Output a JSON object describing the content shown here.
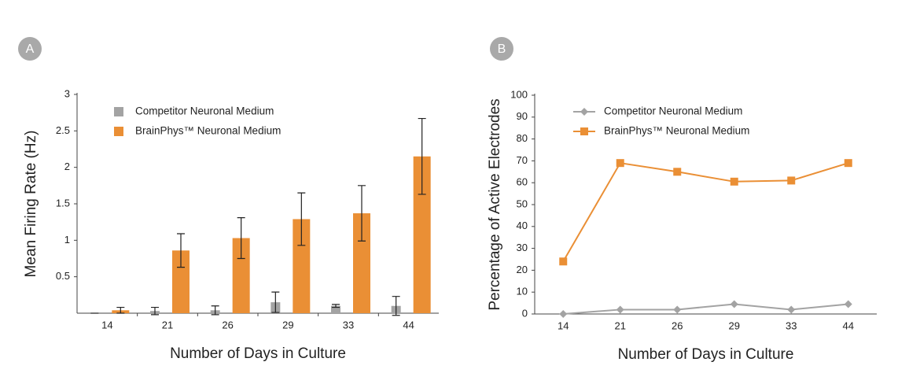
{
  "chart_data": [
    {
      "type": "bar",
      "panel": "A",
      "xlabel": "Number of Days in Culture",
      "ylabel": "Mean Firing Rate (Hz)",
      "categories": [
        "14",
        "21",
        "26",
        "29",
        "33",
        "44"
      ],
      "series": [
        {
          "name": "Competitor Neuronal Medium",
          "color": "#a3a3a3",
          "values": [
            0,
            0.03,
            0.04,
            0.15,
            0.1,
            0.1
          ],
          "errors": [
            0,
            0.05,
            0.06,
            0.14,
            0.02,
            0.13
          ]
        },
        {
          "name": "BrainPhys™ Neuronal Medium",
          "color": "#ea8f35",
          "values": [
            0.04,
            0.86,
            1.03,
            1.29,
            1.37,
            2.15
          ],
          "errors": [
            0.04,
            0.23,
            0.28,
            0.36,
            0.38,
            0.52
          ]
        }
      ],
      "ylim": [
        0,
        3
      ],
      "yticks": [
        0.5,
        1,
        1.5,
        2,
        2.5,
        3
      ]
    },
    {
      "type": "line",
      "panel": "B",
      "xlabel": "Number of Days in Culture",
      "ylabel": "Percentage of Active Electrodes",
      "categories": [
        "14",
        "21",
        "26",
        "29",
        "33",
        "44"
      ],
      "series": [
        {
          "name": "Competitor Neuronal Medium",
          "color": "#a3a3a3",
          "marker": "diamond",
          "values": [
            0,
            2,
            2,
            4.5,
            2,
            4.5
          ]
        },
        {
          "name": "BrainPhys™ Neuronal Medium",
          "color": "#ea8f35",
          "marker": "square",
          "values": [
            24,
            69,
            65,
            60.5,
            61,
            69
          ]
        }
      ],
      "ylim": [
        0,
        100
      ],
      "yticks": [
        0,
        10,
        20,
        30,
        40,
        50,
        60,
        70,
        80,
        90,
        100
      ]
    }
  ]
}
